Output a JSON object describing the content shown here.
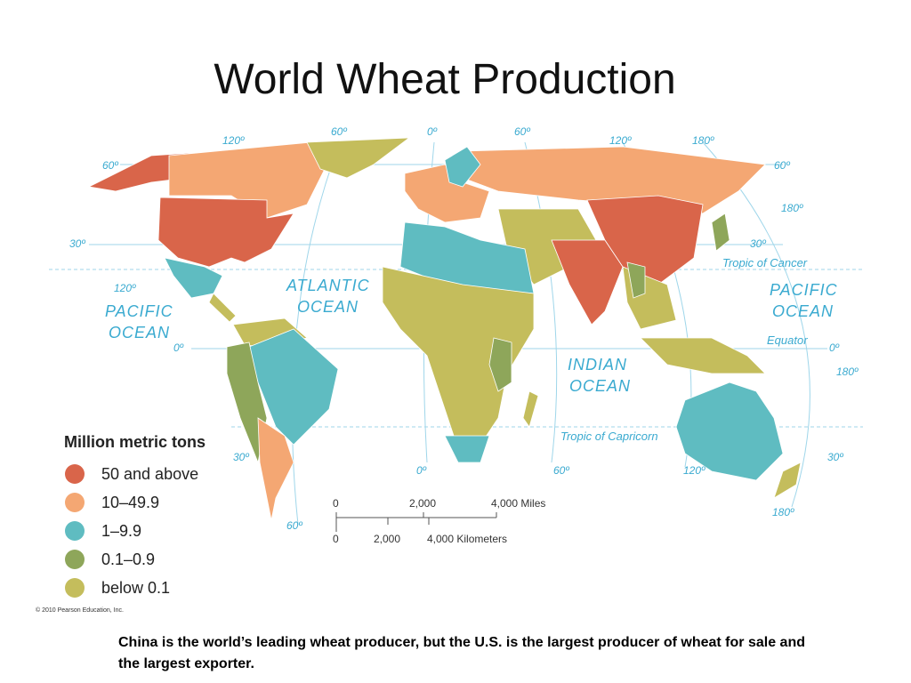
{
  "title": "World Wheat Production",
  "map": {
    "graticule_labels": [
      "120º",
      "60º",
      "0º",
      "60º",
      "120º",
      "180º",
      "60º",
      "60º",
      "180º",
      "30º",
      "30º",
      "120º",
      "0º",
      "0º",
      "180º",
      "30º",
      "30º",
      "0º",
      "60º",
      "120º",
      "180º",
      "60º"
    ],
    "oceans": [
      {
        "lines": [
          "ATLANTIC",
          "OCEAN"
        ]
      },
      {
        "lines": [
          "PACIFIC",
          "OCEAN"
        ]
      },
      {
        "lines": [
          "PACIFIC",
          "OCEAN"
        ]
      },
      {
        "lines": [
          "INDIAN",
          "OCEAN"
        ]
      }
    ],
    "lines": {
      "cancer": "Tropic of Cancer",
      "equator": "Equator",
      "capricorn": "Tropic of Capricorn"
    }
  },
  "legend": {
    "title": "Million metric tons",
    "items": [
      {
        "label": "50 and above",
        "color": "#d9654a"
      },
      {
        "label": "10–49.9",
        "color": "#f4a773"
      },
      {
        "label": "1–9.9",
        "color": "#5fbcc1"
      },
      {
        "label": "0.1–0.9",
        "color": "#8ea65a"
      },
      {
        "label": "below 0.1",
        "color": "#c4bd5c"
      }
    ]
  },
  "scale": {
    "miles": [
      "0",
      "2,000",
      "4,000 Miles"
    ],
    "kilometers": [
      "0",
      "2,000",
      "4,000 Kilometers"
    ]
  },
  "copyright": "© 2010 Pearson Education, Inc.",
  "caption": "China is the world’s leading wheat producer, but the U.S. is the largest producer of wheat for sale and the largest exporter."
}
